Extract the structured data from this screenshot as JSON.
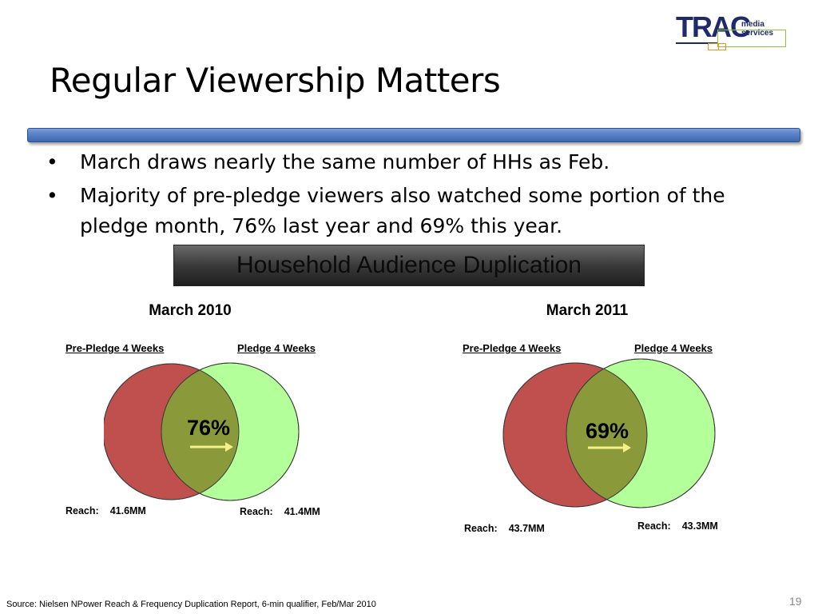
{
  "logo": {
    "name": "TRAC",
    "tagline": "media services"
  },
  "slide": {
    "title": "Regular Viewership Matters",
    "bullets": [
      "March draws nearly the same number of HHs as Feb.",
      "Majority of pre-pledge viewers also watched some portion of the pledge month, 76% last year and 69% this year."
    ],
    "banner": "Household Audience Duplication",
    "source": "Source: Nielsen NPower Reach & Frequency Duplication Report, 6-min qualifier, Feb/Mar 2010",
    "page_number": "19"
  },
  "venn": [
    {
      "year_label": "March 2010",
      "left_label": "Pre-Pledge 4 Weeks",
      "right_label": "Pledge 4 Weeks",
      "overlap_label": "76%",
      "left_reach_label": "Reach:",
      "left_reach_value": "41.6MM",
      "right_reach_label": "Reach:",
      "right_reach_value": "41.4MM"
    },
    {
      "year_label": "March 2011",
      "left_label": "Pre-Pledge 4 Weeks",
      "right_label": "Pledge 4 Weeks",
      "overlap_label": "69%",
      "left_reach_label": "Reach:",
      "left_reach_value": "43.7MM",
      "right_reach_label": "Reach:",
      "right_reach_value": "43.3MM"
    }
  ],
  "colors": {
    "pre_pledge_fill": "#c0504d",
    "pledge_fill": "#b3ff99",
    "overlap_fill": "#8a9a3a",
    "arrow": "#f5f08a",
    "rule": "#4f79bd",
    "logo_navy": "#1f2a6b",
    "logo_green": "#8cc63f",
    "logo_orange": "#f7941d"
  }
}
